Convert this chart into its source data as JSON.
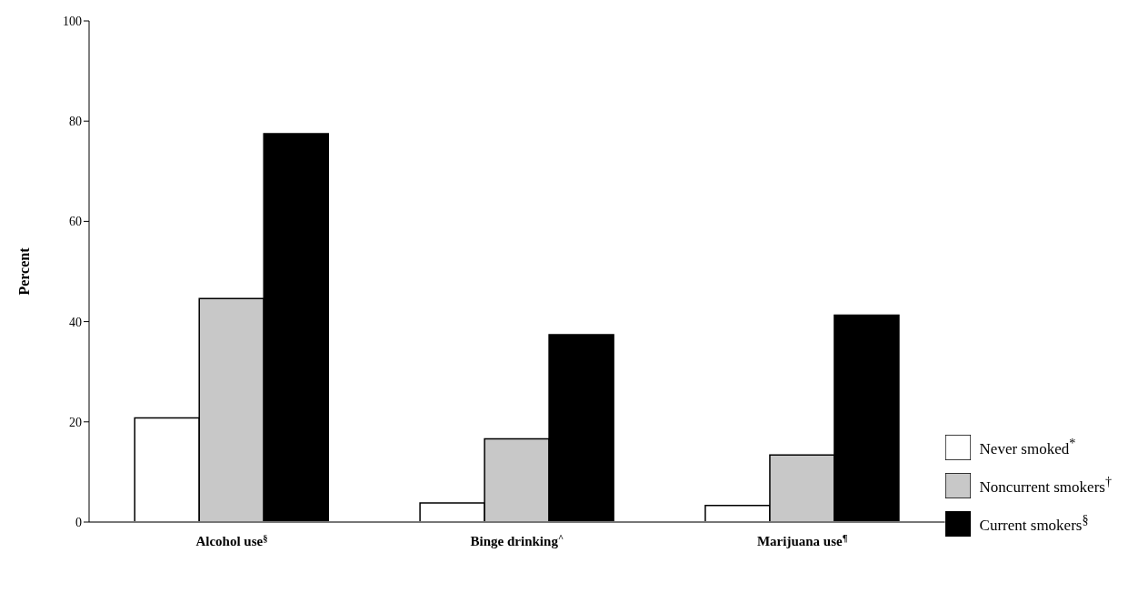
{
  "chart_data": {
    "type": "bar",
    "ylabel": "Percent",
    "categories": [
      "Alcohol use$^{§}$",
      "Binge drinking$^{^}$",
      "Marijuana use$^{¶}$"
    ],
    "series": [
      {
        "name": "Never smoked$^{*}$",
        "color": "#ffffff",
        "values": [
          20.8,
          3.8,
          3.3
        ]
      },
      {
        "name": "Noncurrent smokers$^{†}$",
        "color": "#c8c8c8",
        "values": [
          44.6,
          16.6,
          13.4
        ]
      },
      {
        "name": "Current smokers$^{§}$",
        "color": "#000000",
        "values": [
          77.5,
          37.4,
          41.3
        ]
      }
    ],
    "ylim": [
      0,
      100
    ],
    "yticks": [
      0,
      20,
      40,
      60,
      80,
      100
    ],
    "grid": false,
    "legend": "right"
  }
}
